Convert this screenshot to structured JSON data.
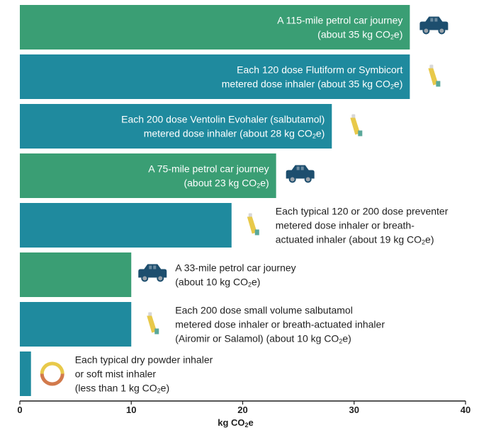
{
  "chart_data": {
    "type": "bar",
    "orientation": "horizontal",
    "xlabel": "kg CO₂e",
    "xlim": [
      0,
      40
    ],
    "xticks": [
      0,
      10,
      20,
      30,
      40
    ],
    "grid": false,
    "colors": {
      "car": "#3a9e74",
      "inhaler": "#1f8a9e",
      "car_icon": "#1d4e6e",
      "inhaler_body": "#e8c94a",
      "inhaler_cap": "#5aa89a"
    },
    "bars": [
      {
        "value": 35,
        "kind": "car",
        "icon": "car-icon",
        "lines": [
          "A 115-mile petrol car journey",
          "(about 35 kg CO₂e)"
        ]
      },
      {
        "value": 35,
        "kind": "inhaler",
        "icon": "inhaler-icon",
        "lines": [
          "Each 120 dose Flutiform or Symbicort",
          "metered dose inhaler (about 35 kg CO₂e)"
        ]
      },
      {
        "value": 28,
        "kind": "inhaler",
        "icon": "inhaler-icon",
        "lines": [
          "Each 200 dose Ventolin Evohaler (salbutamol)",
          "metered dose inhaler (about 28 kg CO₂e)"
        ]
      },
      {
        "value": 23,
        "kind": "car",
        "icon": "car-icon",
        "lines": [
          "A 75-mile petrol car journey",
          "(about 23 kg CO₂e)"
        ]
      },
      {
        "value": 19,
        "kind": "inhaler",
        "icon": "inhaler-icon",
        "lines": [
          "Each typical 120 or 200 dose preventer",
          "metered dose inhaler or breath-",
          "actuated inhaler (about 19 kg CO₂e)"
        ]
      },
      {
        "value": 10,
        "kind": "car",
        "icon": "car-icon",
        "lines": [
          "A 33-mile petrol car journey",
          "(about 10 kg CO₂e)"
        ]
      },
      {
        "value": 10,
        "kind": "inhaler",
        "icon": "inhaler-icon",
        "lines": [
          "Each 200 dose small volume salbutamol",
          "metered dose inhaler or breath-actuated inhaler",
          "(Airomir or Salamol) (about 10 kg CO₂e)"
        ]
      },
      {
        "value": 1,
        "kind": "inhaler",
        "icon": "dry-powder-inhaler-icon",
        "lines": [
          "Each typical dry powder inhaler",
          "or soft mist inhaler",
          "(less than 1 kg CO₂e)"
        ]
      }
    ]
  }
}
